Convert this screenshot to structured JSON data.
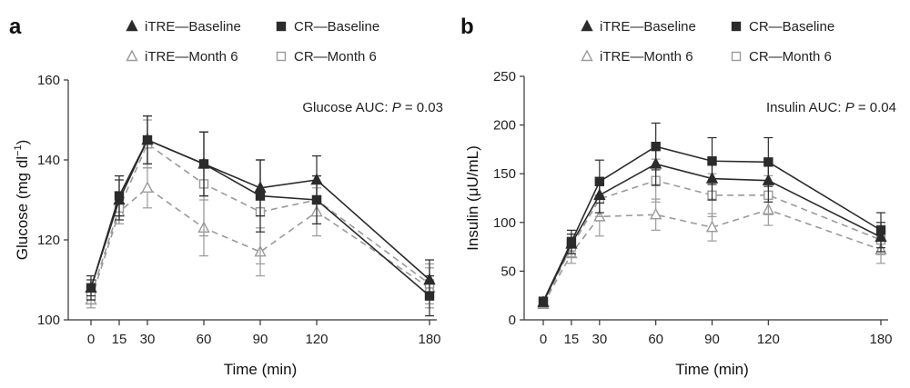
{
  "chart_data": [
    {
      "type": "line",
      "panel_label": "a",
      "xlabel": "Time (min)",
      "ylabel": "Glucose (mg dl",
      "ylabel_sup": "−1",
      "ylabel_end": ")",
      "x": [
        0,
        15,
        30,
        60,
        90,
        120,
        180
      ],
      "x_ticks": [
        0,
        15,
        30,
        60,
        90,
        120,
        180
      ],
      "ylim": [
        100,
        160
      ],
      "y_ticks": [
        100,
        120,
        140,
        160
      ],
      "annotation": {
        "prefix": "Glucose AUC: ",
        "italic": "P",
        "suffix": " = 0.03"
      },
      "series": [
        {
          "name": "iTRE—Baseline",
          "marker": "triangle",
          "filled": true,
          "dashed": false,
          "color": "#2b2b2b",
          "values": [
            108,
            130,
            145,
            139,
            133,
            135,
            110
          ],
          "err": [
            2,
            5,
            6,
            8,
            7,
            6,
            5
          ]
        },
        {
          "name": "CR—Baseline",
          "marker": "square",
          "filled": true,
          "dashed": false,
          "color": "#2b2b2b",
          "values": [
            108,
            131,
            145,
            139,
            131,
            130,
            106
          ],
          "err": [
            3,
            5,
            6,
            8,
            9,
            6,
            5
          ]
        },
        {
          "name": "iTRE—Month 6",
          "marker": "triangle",
          "filled": false,
          "dashed": true,
          "color": "#9a9a9a",
          "values": [
            105,
            127,
            133,
            123,
            117,
            127,
            108
          ],
          "err": [
            2,
            3,
            5,
            7,
            6,
            6,
            5
          ]
        },
        {
          "name": "CR—Month 6",
          "marker": "square",
          "filled": false,
          "dashed": true,
          "color": "#9a9a9a",
          "values": [
            106,
            128,
            144,
            134,
            127,
            130,
            109
          ],
          "err": [
            2,
            4,
            6,
            13,
            13,
            6,
            5
          ]
        }
      ]
    },
    {
      "type": "line",
      "panel_label": "b",
      "xlabel": "Time (min)",
      "ylabel": "Insulin (μU/mL)",
      "x": [
        0,
        15,
        30,
        60,
        90,
        120,
        180
      ],
      "x_ticks": [
        0,
        15,
        30,
        60,
        90,
        120,
        180
      ],
      "ylim": [
        0,
        250
      ],
      "y_ticks": [
        0,
        50,
        100,
        150,
        200,
        250
      ],
      "annotation": {
        "prefix": "Insulin AUC: ",
        "italic": "P",
        "suffix": " = 0.04"
      },
      "series": [
        {
          "name": "iTRE—Baseline",
          "marker": "triangle",
          "filled": true,
          "dashed": false,
          "color": "#2b2b2b",
          "values": [
            18,
            78,
            128,
            160,
            145,
            143,
            85
          ],
          "err": [
            3,
            10,
            18,
            22,
            22,
            22,
            15
          ]
        },
        {
          "name": "CR—Baseline",
          "marker": "square",
          "filled": true,
          "dashed": false,
          "color": "#2b2b2b",
          "values": [
            19,
            80,
            142,
            178,
            163,
            162,
            92
          ],
          "err": [
            3,
            12,
            22,
            24,
            24,
            25,
            18
          ]
        },
        {
          "name": "iTRE—Month 6",
          "marker": "triangle",
          "filled": false,
          "dashed": true,
          "color": "#9a9a9a",
          "values": [
            16,
            68,
            106,
            108,
            95,
            113,
            72
          ],
          "err": [
            3,
            10,
            20,
            16,
            14,
            16,
            14
          ]
        },
        {
          "name": "CR—Month 6",
          "marker": "square",
          "filled": false,
          "dashed": true,
          "color": "#9a9a9a",
          "values": [
            17,
            75,
            124,
            143,
            128,
            128,
            82
          ],
          "err": [
            3,
            10,
            18,
            22,
            22,
            20,
            15
          ]
        }
      ]
    }
  ]
}
